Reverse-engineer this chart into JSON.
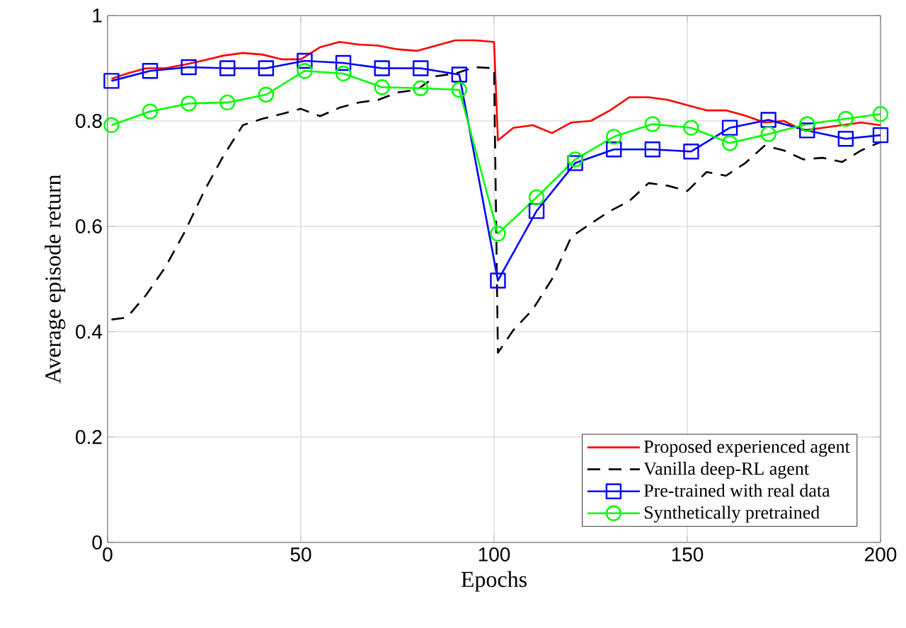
{
  "chart_data": {
    "type": "line",
    "xlabel": "Epochs",
    "ylabel": "Average episode return",
    "xlim": [
      0,
      200
    ],
    "ylim": [
      0,
      1
    ],
    "xticks": [
      0,
      50,
      100,
      150,
      200
    ],
    "yticks": [
      0,
      0.2,
      0.4,
      0.6,
      0.8,
      1
    ],
    "grid": true,
    "legend": "bottom right",
    "series": [
      {
        "name": "Proposed experienced agent",
        "color": "#ff0000",
        "marker": "none",
        "line_style": "solid",
        "x": [
          1,
          5,
          10,
          15,
          20,
          25,
          30,
          35,
          40,
          45,
          50,
          55,
          60,
          65,
          70,
          75,
          80,
          85,
          90,
          95,
          100,
          101,
          105,
          110,
          115,
          120,
          125,
          130,
          135,
          140,
          145,
          150,
          155,
          160,
          165,
          170,
          175,
          180,
          185,
          190,
          195,
          200
        ],
        "values": [
          0.88,
          0.89,
          0.9,
          0.9,
          0.907,
          0.915,
          0.924,
          0.929,
          0.926,
          0.917,
          0.917,
          0.94,
          0.95,
          0.945,
          0.943,
          0.936,
          0.933,
          0.943,
          0.953,
          0.953,
          0.95,
          0.763,
          0.787,
          0.792,
          0.777,
          0.797,
          0.8,
          0.82,
          0.845,
          0.845,
          0.84,
          0.83,
          0.82,
          0.82,
          0.81,
          0.797,
          0.8,
          0.782,
          0.787,
          0.792,
          0.797,
          0.792
        ]
      },
      {
        "name": "Vanilla deep-RL agent",
        "color": "#000000",
        "marker": "none",
        "line_style": "dashed",
        "x": [
          1,
          5,
          10,
          15,
          20,
          25,
          30,
          35,
          40,
          45,
          50,
          55,
          60,
          65,
          70,
          75,
          80,
          85,
          90,
          95,
          100,
          101,
          105,
          110,
          115,
          120,
          125,
          130,
          135,
          140,
          145,
          150,
          155,
          160,
          165,
          170,
          175,
          180,
          185,
          190,
          195,
          200
        ],
        "values": [
          0.423,
          0.427,
          0.47,
          0.523,
          0.59,
          0.667,
          0.734,
          0.792,
          0.804,
          0.813,
          0.823,
          0.809,
          0.825,
          0.835,
          0.84,
          0.854,
          0.859,
          0.885,
          0.89,
          0.902,
          0.9,
          0.36,
          0.403,
          0.442,
          0.5,
          0.58,
          0.605,
          0.629,
          0.648,
          0.682,
          0.677,
          0.667,
          0.703,
          0.696,
          0.72,
          0.753,
          0.744,
          0.727,
          0.73,
          0.722,
          0.744,
          0.76
        ]
      },
      {
        "name": "Pre-trained with real data",
        "color": "#0000ff",
        "marker": "square",
        "line_style": "solid",
        "x": [
          1,
          11,
          21,
          31,
          41,
          51,
          61,
          71,
          81,
          91,
          101,
          111,
          121,
          131,
          141,
          151,
          161,
          171,
          181,
          191,
          200
        ],
        "values": [
          0.876,
          0.895,
          0.902,
          0.9,
          0.9,
          0.914,
          0.91,
          0.9,
          0.9,
          0.888,
          0.497,
          0.629,
          0.72,
          0.746,
          0.746,
          0.742,
          0.787,
          0.802,
          0.782,
          0.766,
          0.773
        ]
      },
      {
        "name": "Synthetically pretrained",
        "color": "#00ff00",
        "marker": "circle",
        "line_style": "solid",
        "x": [
          1,
          11,
          21,
          31,
          41,
          51,
          61,
          71,
          81,
          91,
          101,
          111,
          121,
          131,
          141,
          151,
          161,
          171,
          181,
          191,
          200
        ],
        "values": [
          0.792,
          0.818,
          0.833,
          0.835,
          0.85,
          0.895,
          0.89,
          0.864,
          0.862,
          0.859,
          0.586,
          0.655,
          0.727,
          0.77,
          0.794,
          0.787,
          0.758,
          0.775,
          0.794,
          0.804,
          0.813
        ]
      }
    ]
  }
}
